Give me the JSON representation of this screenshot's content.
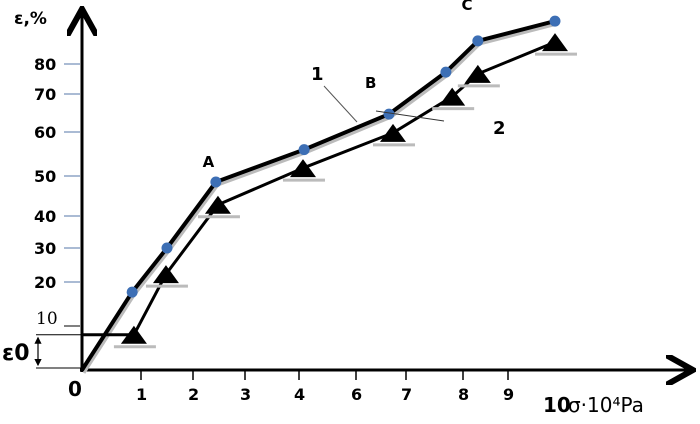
{
  "chart_data": {
    "type": "line",
    "title": "",
    "ylabel": "ε,%",
    "xlabel": "σ·10⁴Pa",
    "x_ticks": [
      "0",
      "1",
      "2",
      "3",
      "4",
      "6",
      "7",
      "8",
      "9",
      "10"
    ],
    "x_tick_values": [
      0,
      1,
      2,
      3,
      4,
      6,
      7,
      8,
      9,
      10
    ],
    "y_ticks": [
      "10",
      "20",
      "30",
      "40",
      "50",
      "60",
      "70",
      "80"
    ],
    "y_tick_values": [
      10,
      20,
      30,
      40,
      50,
      60,
      70,
      80
    ],
    "origin_label": "0",
    "epsilon0_label": "ε0",
    "epsilon0_value": 8,
    "grid": false,
    "series": [
      {
        "name": "1",
        "marker": "circle",
        "color": "#3d6fb5",
        "x": [
          0,
          0.85,
          1.5,
          2.44,
          4.18,
          6.66,
          7.7,
          8.33,
          10
        ],
        "y": [
          0,
          17.7,
          30,
          48.5,
          56,
          64.7,
          77.3,
          87.7,
          94.3
        ]
      },
      {
        "name": "2",
        "marker": "triangle",
        "color": "#000000",
        "x": [
          0,
          0.88,
          1.48,
          2.48,
          4.14,
          6.74,
          7.81,
          8.33,
          10
        ],
        "y": [
          8,
          8,
          22.3,
          42.8,
          51.8,
          59.8,
          69.3,
          76.7,
          87.3
        ]
      }
    ],
    "annotations": [
      {
        "text": "A",
        "x": 2.3,
        "y": 52
      },
      {
        "text": "B",
        "x": 6.3,
        "y": 72
      },
      {
        "text": "C",
        "x": 8.1,
        "y": 98
      }
    ]
  }
}
